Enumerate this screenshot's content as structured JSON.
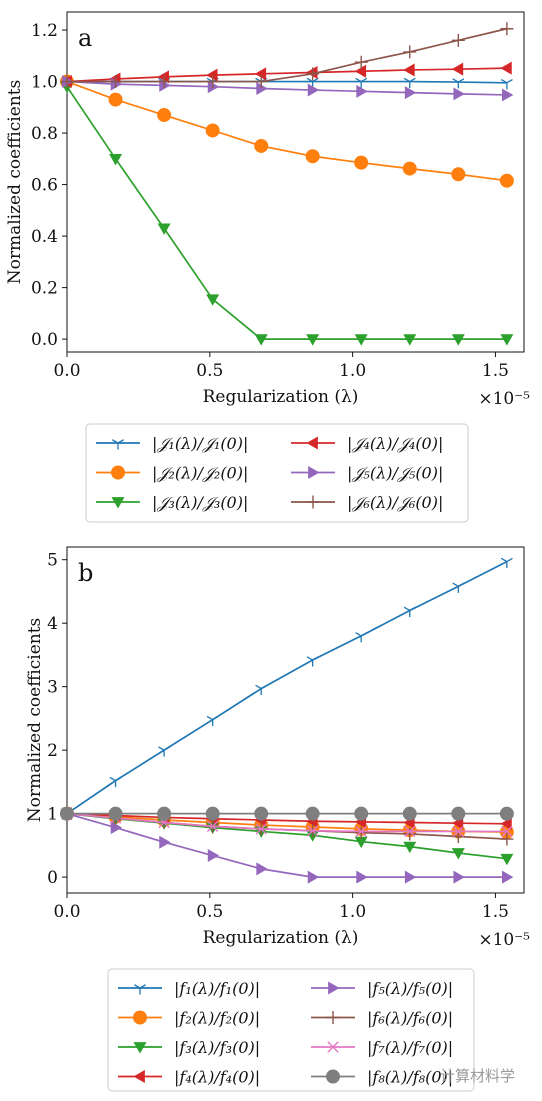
{
  "chart_data": [
    {
      "type": "line",
      "panel_label": "a",
      "xlabel": "Regularization (λ)",
      "ylabel": "Normalized coefficients",
      "x_multiplier": "×10⁻⁵",
      "xlim": [
        0,
        1.6
      ],
      "ylim": [
        -0.05,
        1.27
      ],
      "xticks": [
        "0.0",
        "0.5",
        "1.0",
        "1.5"
      ],
      "xtick_values": [
        0,
        0.5,
        1.0,
        1.5
      ],
      "yticks": [
        "0.0",
        "0.2",
        "0.4",
        "0.6",
        "0.8",
        "1.0",
        "1.2"
      ],
      "ytick_values": [
        0,
        0.2,
        0.4,
        0.6,
        0.8,
        1.0,
        1.2
      ],
      "grid": false,
      "legend_placement": "below",
      "x": [
        0,
        0.17,
        0.34,
        0.51,
        0.68,
        0.86,
        1.03,
        1.2,
        1.37,
        1.54
      ],
      "series": [
        {
          "name": "|𝒥₁(λ)/𝒥₁(0)|",
          "color": "#1f77b4",
          "marker": "tri_down",
          "values": [
            1.0,
            1.0,
            1.0,
            1.0,
            1.0,
            1.0,
            1.0,
            1.0,
            0.998,
            0.995
          ]
        },
        {
          "name": "|𝒥₂(λ)/𝒥₂(0)|",
          "color": "#ff7f0e",
          "marker": "circle",
          "values": [
            1.0,
            0.93,
            0.87,
            0.81,
            0.75,
            0.71,
            0.685,
            0.662,
            0.64,
            0.615
          ]
        },
        {
          "name": "|𝒥₃(λ)/𝒥₃(0)|",
          "color": "#2ca02c",
          "marker": "triangle_down",
          "values": [
            0.98,
            0.7,
            0.43,
            0.155,
            0.0,
            0.0,
            0.0,
            0.0,
            0.0,
            0.0
          ]
        },
        {
          "name": "|𝒥₄(λ)/𝒥₄(0)|",
          "color": "#d62728",
          "marker": "triangle_left",
          "values": [
            1.0,
            1.01,
            1.018,
            1.025,
            1.03,
            1.035,
            1.04,
            1.045,
            1.048,
            1.052
          ]
        },
        {
          "name": "|𝒥₅(λ)/𝒥₅(0)|",
          "color": "#9467bd",
          "marker": "triangle_right",
          "values": [
            1.0,
            0.99,
            0.985,
            0.98,
            0.973,
            0.967,
            0.962,
            0.957,
            0.952,
            0.948
          ]
        },
        {
          "name": "|𝒥₆(λ)/𝒥₆(0)|",
          "color": "#8c564b",
          "marker": "plus",
          "values": [
            1.0,
            1.0,
            1.0,
            1.0,
            1.0,
            1.03,
            1.075,
            1.115,
            1.16,
            1.205
          ]
        }
      ]
    },
    {
      "type": "line",
      "panel_label": "b",
      "xlabel": "Regularization (λ)",
      "ylabel": "Normalized coefficients",
      "x_multiplier": "×10⁻⁵",
      "xlim": [
        0,
        1.6
      ],
      "ylim": [
        -0.25,
        5.2
      ],
      "xticks": [
        "0.0",
        "0.5",
        "1.0",
        "1.5"
      ],
      "xtick_values": [
        0,
        0.5,
        1.0,
        1.5
      ],
      "yticks": [
        "0",
        "1",
        "2",
        "3",
        "4",
        "5"
      ],
      "ytick_values": [
        0,
        1,
        2,
        3,
        4,
        5
      ],
      "grid": false,
      "legend_placement": "below",
      "x": [
        0,
        0.17,
        0.34,
        0.51,
        0.68,
        0.86,
        1.03,
        1.2,
        1.37,
        1.54
      ],
      "series": [
        {
          "name": "|f₁(λ)/f₁(0)|",
          "color": "#1f77b4",
          "marker": "tri_down",
          "values": [
            1.0,
            1.52,
            2.0,
            2.48,
            2.97,
            3.42,
            3.8,
            4.2,
            4.58,
            4.97
          ]
        },
        {
          "name": "|f₂(λ)/f₂(0)|",
          "color": "#ff7f0e",
          "marker": "circle",
          "values": [
            1.0,
            0.95,
            0.9,
            0.86,
            0.82,
            0.79,
            0.76,
            0.74,
            0.72,
            0.71
          ]
        },
        {
          "name": "|f₃(λ)/f₃(0)|",
          "color": "#2ca02c",
          "marker": "triangle_down",
          "values": [
            1.0,
            0.92,
            0.85,
            0.78,
            0.72,
            0.66,
            0.56,
            0.48,
            0.38,
            0.29
          ]
        },
        {
          "name": "|f₄(λ)/f₄(0)|",
          "color": "#d62728",
          "marker": "triangle_left",
          "values": [
            1.0,
            0.97,
            0.94,
            0.92,
            0.9,
            0.88,
            0.87,
            0.86,
            0.85,
            0.84
          ]
        },
        {
          "name": "|f₅(λ)/f₅(0)|",
          "color": "#9467bd",
          "marker": "triangle_right",
          "values": [
            1.0,
            0.78,
            0.55,
            0.34,
            0.13,
            0.0,
            0.0,
            0.0,
            0.0,
            0.0
          ]
        },
        {
          "name": "|f₆(λ)/f₆(0)|",
          "color": "#8c564b",
          "marker": "plus",
          "values": [
            1.0,
            0.93,
            0.86,
            0.8,
            0.76,
            0.73,
            0.7,
            0.68,
            0.64,
            0.6
          ]
        },
        {
          "name": "|f₇(λ)/f₇(0)|",
          "color": "#e377c2",
          "marker": "x",
          "values": [
            1.0,
            0.93,
            0.86,
            0.8,
            0.76,
            0.73,
            0.72,
            0.72,
            0.72,
            0.72
          ]
        },
        {
          "name": "|f₈(λ)/f₈(0)|",
          "color": "#7f7f7f",
          "marker": "circle",
          "values": [
            1.0,
            1.0,
            1.0,
            1.0,
            1.0,
            1.0,
            1.0,
            1.0,
            1.0,
            1.0
          ]
        }
      ]
    }
  ],
  "watermark": "计算材料学"
}
